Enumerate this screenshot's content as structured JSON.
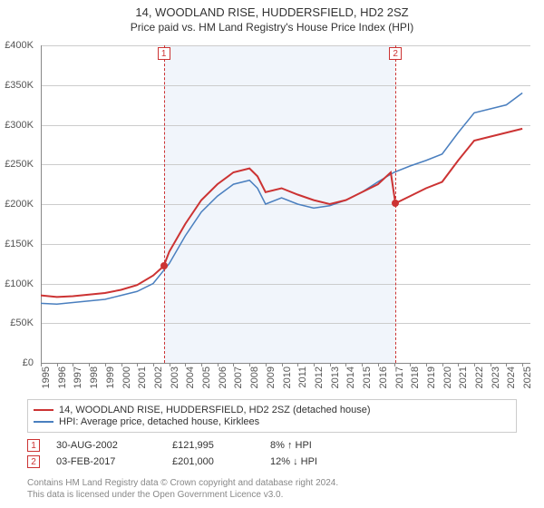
{
  "title": "14, WOODLAND RISE, HUDDERSFIELD, HD2 2SZ",
  "subtitle": "Price paid vs. HM Land Registry's House Price Index (HPI)",
  "chart": {
    "type": "line",
    "x_range": [
      1995,
      2025.5
    ],
    "y_range": [
      0,
      400000
    ],
    "y_ticks": [
      0,
      50000,
      100000,
      150000,
      200000,
      250000,
      300000,
      350000,
      400000
    ],
    "y_tick_labels": [
      "£0",
      "£50K",
      "£100K",
      "£150K",
      "£200K",
      "£250K",
      "£300K",
      "£350K",
      "£400K"
    ],
    "x_ticks": [
      1995,
      1996,
      1997,
      1998,
      1999,
      2000,
      2001,
      2002,
      2003,
      2004,
      2005,
      2006,
      2007,
      2008,
      2009,
      2010,
      2011,
      2012,
      2013,
      2014,
      2015,
      2016,
      2017,
      2018,
      2019,
      2020,
      2021,
      2022,
      2023,
      2024,
      2025
    ],
    "grid_color": "#cccccc",
    "background_color": "#ffffff",
    "shade_color": "rgba(200,215,240,0.25)",
    "shade_start": 2002.66,
    "shade_end": 2017.09,
    "markers": [
      {
        "x": 2002.66,
        "label": "1",
        "dot_y": 121995
      },
      {
        "x": 2017.09,
        "label": "2",
        "dot_y": 201000
      }
    ],
    "series": [
      {
        "name": "14, WOODLAND RISE, HUDDERSFIELD, HD2 2SZ (detached house)",
        "color": "#cc3333",
        "width": 2,
        "data": [
          [
            1995,
            85000
          ],
          [
            1996,
            83000
          ],
          [
            1997,
            84000
          ],
          [
            1998,
            86000
          ],
          [
            1999,
            88000
          ],
          [
            2000,
            92000
          ],
          [
            2001,
            98000
          ],
          [
            2002,
            110000
          ],
          [
            2002.66,
            121995
          ],
          [
            2003,
            140000
          ],
          [
            2004,
            175000
          ],
          [
            2005,
            205000
          ],
          [
            2006,
            225000
          ],
          [
            2007,
            240000
          ],
          [
            2008,
            245000
          ],
          [
            2008.5,
            235000
          ],
          [
            2009,
            215000
          ],
          [
            2010,
            220000
          ],
          [
            2011,
            212000
          ],
          [
            2012,
            205000
          ],
          [
            2013,
            200000
          ],
          [
            2014,
            205000
          ],
          [
            2015,
            215000
          ],
          [
            2016,
            225000
          ],
          [
            2016.8,
            240000
          ],
          [
            2017.09,
            201000
          ],
          [
            2018,
            210000
          ],
          [
            2019,
            220000
          ],
          [
            2020,
            228000
          ],
          [
            2021,
            255000
          ],
          [
            2022,
            280000
          ],
          [
            2023,
            285000
          ],
          [
            2024,
            290000
          ],
          [
            2025,
            295000
          ]
        ]
      },
      {
        "name": "HPI: Average price, detached house, Kirklees",
        "color": "#4a7fbf",
        "width": 1.5,
        "data": [
          [
            1995,
            75000
          ],
          [
            1996,
            74000
          ],
          [
            1997,
            76000
          ],
          [
            1998,
            78000
          ],
          [
            1999,
            80000
          ],
          [
            2000,
            85000
          ],
          [
            2001,
            90000
          ],
          [
            2002,
            100000
          ],
          [
            2003,
            125000
          ],
          [
            2004,
            160000
          ],
          [
            2005,
            190000
          ],
          [
            2006,
            210000
          ],
          [
            2007,
            225000
          ],
          [
            2008,
            230000
          ],
          [
            2008.5,
            220000
          ],
          [
            2009,
            200000
          ],
          [
            2010,
            208000
          ],
          [
            2011,
            200000
          ],
          [
            2012,
            195000
          ],
          [
            2013,
            198000
          ],
          [
            2014,
            205000
          ],
          [
            2015,
            215000
          ],
          [
            2016,
            228000
          ],
          [
            2017,
            240000
          ],
          [
            2018,
            248000
          ],
          [
            2019,
            255000
          ],
          [
            2020,
            263000
          ],
          [
            2021,
            290000
          ],
          [
            2022,
            315000
          ],
          [
            2023,
            320000
          ],
          [
            2024,
            325000
          ],
          [
            2025,
            340000
          ]
        ]
      }
    ]
  },
  "legend": {
    "rows": [
      {
        "color": "#cc3333",
        "label": "14, WOODLAND RISE, HUDDERSFIELD, HD2 2SZ (detached house)"
      },
      {
        "color": "#4a7fbf",
        "label": "HPI: Average price, detached house, Kirklees"
      }
    ]
  },
  "sales": [
    {
      "n": "1",
      "date": "30-AUG-2002",
      "price": "£121,995",
      "delta": "8% ↑ HPI"
    },
    {
      "n": "2",
      "date": "03-FEB-2017",
      "price": "£201,000",
      "delta": "12% ↓ HPI"
    }
  ],
  "footer": {
    "line1": "Contains HM Land Registry data © Crown copyright and database right 2024.",
    "line2": "This data is licensed under the Open Government Licence v3.0."
  }
}
